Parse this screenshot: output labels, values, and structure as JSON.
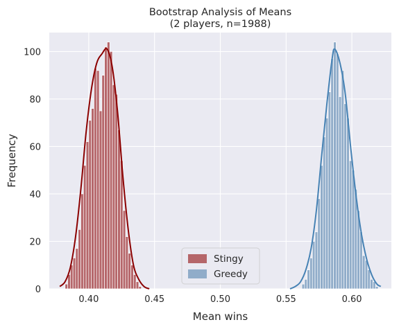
{
  "chart_data": {
    "type": "histogram",
    "title": "Bootstrap Analysis of Means",
    "subtitle": "(2 players, n=1988)",
    "xlabel": "Mean wins",
    "ylabel": "Frequency",
    "xlim": [
      0.37,
      0.63
    ],
    "ylim": [
      0,
      108
    ],
    "xticks": [
      0.4,
      0.45,
      0.5,
      0.55,
      0.6
    ],
    "xtick_labels": [
      "0.40",
      "0.45",
      "0.50",
      "0.55",
      "0.60"
    ],
    "yticks": [
      0,
      20,
      40,
      60,
      80,
      100
    ],
    "ytick_labels": [
      "0",
      "20",
      "40",
      "60",
      "80",
      "100"
    ],
    "grid": true,
    "legend_position": "lower-center",
    "bin_width": 0.002,
    "series": [
      {
        "name": "Stingy",
        "bar_color": "#b5666a",
        "line_color": "#8b0000",
        "bins": [
          [
            0.382,
            2
          ],
          [
            0.384,
            6
          ],
          [
            0.386,
            10
          ],
          [
            0.388,
            13
          ],
          [
            0.39,
            17
          ],
          [
            0.392,
            25
          ],
          [
            0.394,
            40
          ],
          [
            0.396,
            52
          ],
          [
            0.398,
            62
          ],
          [
            0.4,
            71
          ],
          [
            0.402,
            76
          ],
          [
            0.404,
            93
          ],
          [
            0.406,
            92
          ],
          [
            0.408,
            75
          ],
          [
            0.41,
            90
          ],
          [
            0.412,
            102
          ],
          [
            0.414,
            104
          ],
          [
            0.416,
            100
          ],
          [
            0.418,
            86
          ],
          [
            0.42,
            82
          ],
          [
            0.422,
            67
          ],
          [
            0.424,
            54
          ],
          [
            0.426,
            33
          ],
          [
            0.428,
            22
          ],
          [
            0.43,
            15
          ],
          [
            0.432,
            10
          ],
          [
            0.434,
            6
          ],
          [
            0.436,
            3
          ],
          [
            0.438,
            1
          ]
        ],
        "kde": [
          [
            0.378,
            1
          ],
          [
            0.382,
            3
          ],
          [
            0.386,
            9
          ],
          [
            0.39,
            22
          ],
          [
            0.394,
            42
          ],
          [
            0.398,
            66
          ],
          [
            0.402,
            84
          ],
          [
            0.406,
            95
          ],
          [
            0.41,
            99
          ],
          [
            0.414,
            101
          ],
          [
            0.418,
            93
          ],
          [
            0.422,
            74
          ],
          [
            0.426,
            47
          ],
          [
            0.43,
            25
          ],
          [
            0.434,
            10
          ],
          [
            0.438,
            4
          ],
          [
            0.442,
            1
          ],
          [
            0.446,
            0
          ]
        ]
      },
      {
        "name": "Greedy",
        "bar_color": "#90acc9",
        "line_color": "#4682b4",
        "bins": [
          [
            0.562,
            2
          ],
          [
            0.564,
            4
          ],
          [
            0.566,
            8
          ],
          [
            0.568,
            13
          ],
          [
            0.57,
            20
          ],
          [
            0.572,
            24
          ],
          [
            0.574,
            38
          ],
          [
            0.576,
            52
          ],
          [
            0.578,
            64
          ],
          [
            0.58,
            72
          ],
          [
            0.582,
            83
          ],
          [
            0.584,
            97
          ],
          [
            0.586,
            104
          ],
          [
            0.588,
            99
          ],
          [
            0.59,
            81
          ],
          [
            0.592,
            92
          ],
          [
            0.594,
            78
          ],
          [
            0.596,
            72
          ],
          [
            0.598,
            54
          ],
          [
            0.6,
            50
          ],
          [
            0.602,
            42
          ],
          [
            0.604,
            33
          ],
          [
            0.606,
            24
          ],
          [
            0.608,
            14
          ],
          [
            0.61,
            12
          ],
          [
            0.612,
            8
          ],
          [
            0.614,
            4
          ],
          [
            0.616,
            3
          ],
          [
            0.618,
            1
          ]
        ],
        "kde": [
          [
            0.553,
            0
          ],
          [
            0.557,
            1
          ],
          [
            0.561,
            3
          ],
          [
            0.565,
            8
          ],
          [
            0.569,
            17
          ],
          [
            0.573,
            33
          ],
          [
            0.577,
            56
          ],
          [
            0.581,
            78
          ],
          [
            0.585,
            97
          ],
          [
            0.587,
            101
          ],
          [
            0.591,
            95
          ],
          [
            0.595,
            82
          ],
          [
            0.599,
            60
          ],
          [
            0.603,
            40
          ],
          [
            0.607,
            24
          ],
          [
            0.611,
            13
          ],
          [
            0.615,
            6
          ],
          [
            0.619,
            2
          ],
          [
            0.622,
            1
          ]
        ]
      }
    ]
  }
}
